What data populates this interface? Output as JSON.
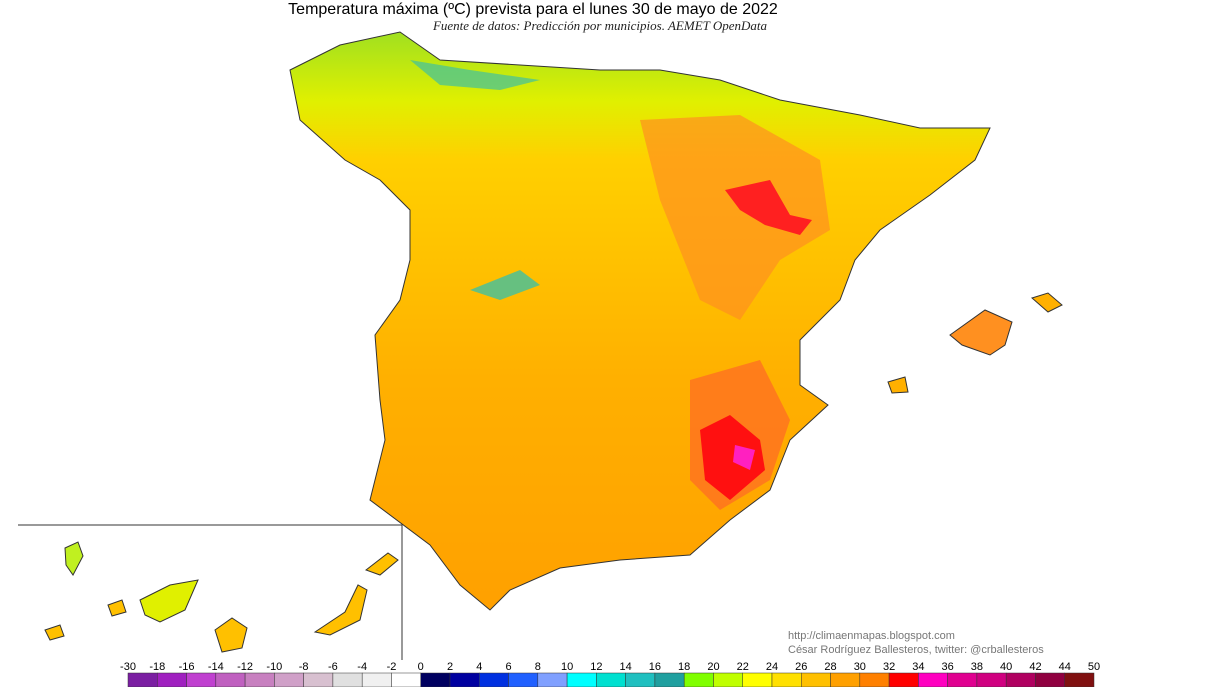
{
  "header": {
    "title": "Temperatura máxima (ºC) prevista para el lunes 30 de mayo de 2022",
    "subtitle": "Fuente de datos: Predicción por municipios. AEMET OpenData"
  },
  "credits": {
    "url": "http://climaenmapas.blogspot.com",
    "author": "César Rodríguez Ballesteros, twitter: @crballesteros"
  },
  "legend": {
    "ticks": [
      -30,
      -18,
      -16,
      -14,
      -12,
      -10,
      -8,
      -6,
      -4,
      -2,
      0,
      2,
      4,
      6,
      8,
      10,
      12,
      14,
      16,
      18,
      20,
      22,
      24,
      26,
      28,
      30,
      32,
      34,
      36,
      38,
      40,
      42,
      44,
      50
    ],
    "colors": [
      "#7b1fa2",
      "#a020c0",
      "#c040d0",
      "#c060c0",
      "#c880c0",
      "#d0a0c8",
      "#d8c0d0",
      "#e0e0e0",
      "#f0f0f0",
      "#ffffff",
      "#000060",
      "#0000a0",
      "#0030e0",
      "#2060ff",
      "#80a0ff",
      "#00ffff",
      "#00e0d0",
      "#20c0c0",
      "#20a0a0",
      "#80ff00",
      "#c0ff00",
      "#ffff00",
      "#ffe000",
      "#ffc000",
      "#ffa000",
      "#ff8000",
      "#ff0000",
      "#ff00c0",
      "#e00090",
      "#d00080",
      "#b00060",
      "#900040",
      "#801010"
    ]
  }
}
